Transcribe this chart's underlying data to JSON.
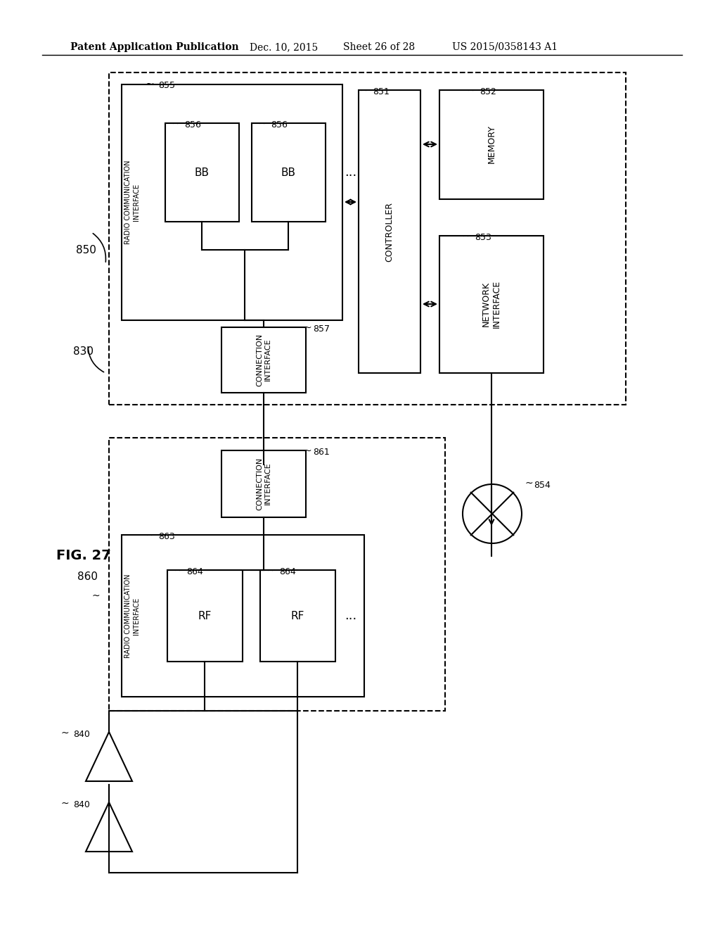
{
  "bg_color": "#ffffff",
  "header_text": "Patent Application Publication",
  "header_date": "Dec. 10, 2015",
  "header_sheet": "Sheet 26 of 28",
  "header_patent": "US 2015/0358143 A1",
  "fig_label": "FIG. 27",
  "label_830": "830",
  "label_840a": "840",
  "label_840b": "840",
  "label_850": "850",
  "label_851": "851",
  "label_852": "852",
  "label_853": "853",
  "label_854": "854",
  "label_855": "855",
  "label_856a": "856",
  "label_856b": "856",
  "label_857": "857",
  "label_860": "860",
  "label_861": "861",
  "label_863": "863",
  "label_864a": "864",
  "label_864b": "864"
}
